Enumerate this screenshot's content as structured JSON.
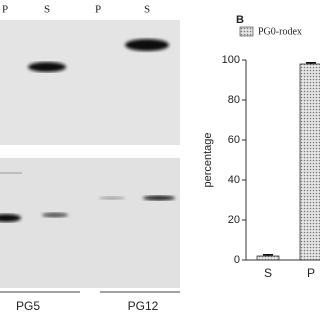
{
  "gel": {
    "top_lane_labels": [
      "P",
      "S",
      "P",
      "S"
    ],
    "bottom_labels": [
      "PG5",
      "PG12"
    ]
  },
  "panel_label": "B",
  "chart_data": {
    "type": "bar",
    "y_label": "percentage",
    "categories": [
      "S",
      "P"
    ],
    "series": [
      {
        "name": "PG0-rodex",
        "color": "#bdbdbd",
        "values": [
          2,
          98
        ],
        "errors": [
          0.6,
          0.6
        ]
      }
    ],
    "ylim": [
      0,
      100
    ],
    "yticks": [
      0,
      20,
      40,
      60,
      80,
      100
    ],
    "legend": "top"
  }
}
